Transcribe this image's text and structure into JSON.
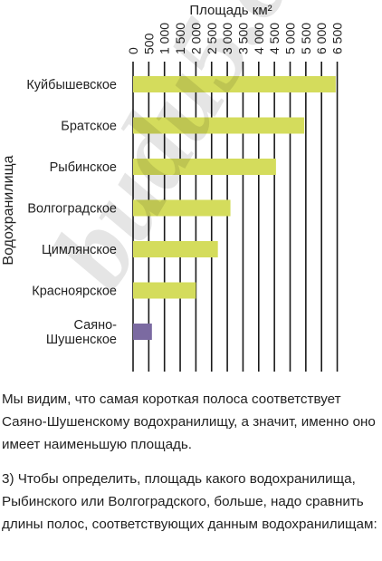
{
  "chart_data": {
    "type": "bar",
    "orientation": "horizontal",
    "title": "Площадь км²",
    "ylabel": "Водохранилища",
    "categories": [
      "Куйбышевское",
      "Братское",
      "Рыбинское",
      "Волгоградское",
      "Цимлянское",
      "Красноярское",
      "Саяно-Шушенское"
    ],
    "category_lines": [
      [
        "Куйбышевское"
      ],
      [
        "Братское"
      ],
      [
        "Рыбинское"
      ],
      [
        "Волгоградское"
      ],
      [
        "Цимлянское"
      ],
      [
        "Красноярское"
      ],
      [
        "Саяно-",
        "Шушенское"
      ]
    ],
    "values": [
      6450,
      5450,
      4550,
      3100,
      2700,
      2000,
      600
    ],
    "bar_colors": [
      "#d4dc5c",
      "#d4dc5c",
      "#d4dc5c",
      "#d4dc5c",
      "#d4dc5c",
      "#d4dc5c",
      "#7b6aa1"
    ],
    "x_ticks": [
      0,
      500,
      1000,
      1500,
      2000,
      2500,
      3000,
      3500,
      4000,
      4500,
      5000,
      5500,
      6000,
      6500
    ],
    "x_tick_labels": [
      "0",
      "500",
      "1 000",
      "1 500",
      "2 000",
      "2 500",
      "3 000",
      "3 500",
      "4 000",
      "4 500",
      "5 000",
      "5 500",
      "6 000",
      "6 500"
    ],
    "xlim": [
      0,
      7000
    ],
    "grid": true
  },
  "text": {
    "paragraph1": "Мы видим, что самая короткая полоса соответствует Саяно-Шушенскому водохранилищу, а значит, именно оно имеет наименьшую площадь.",
    "paragraph2": "3) Чтобы определить, площадь какого водохранилища, Рыбинского или Волгоградского, больше, надо сравнить длины полос, соответствующих данным водохранилищам:"
  },
  "watermark": "budu5.com"
}
